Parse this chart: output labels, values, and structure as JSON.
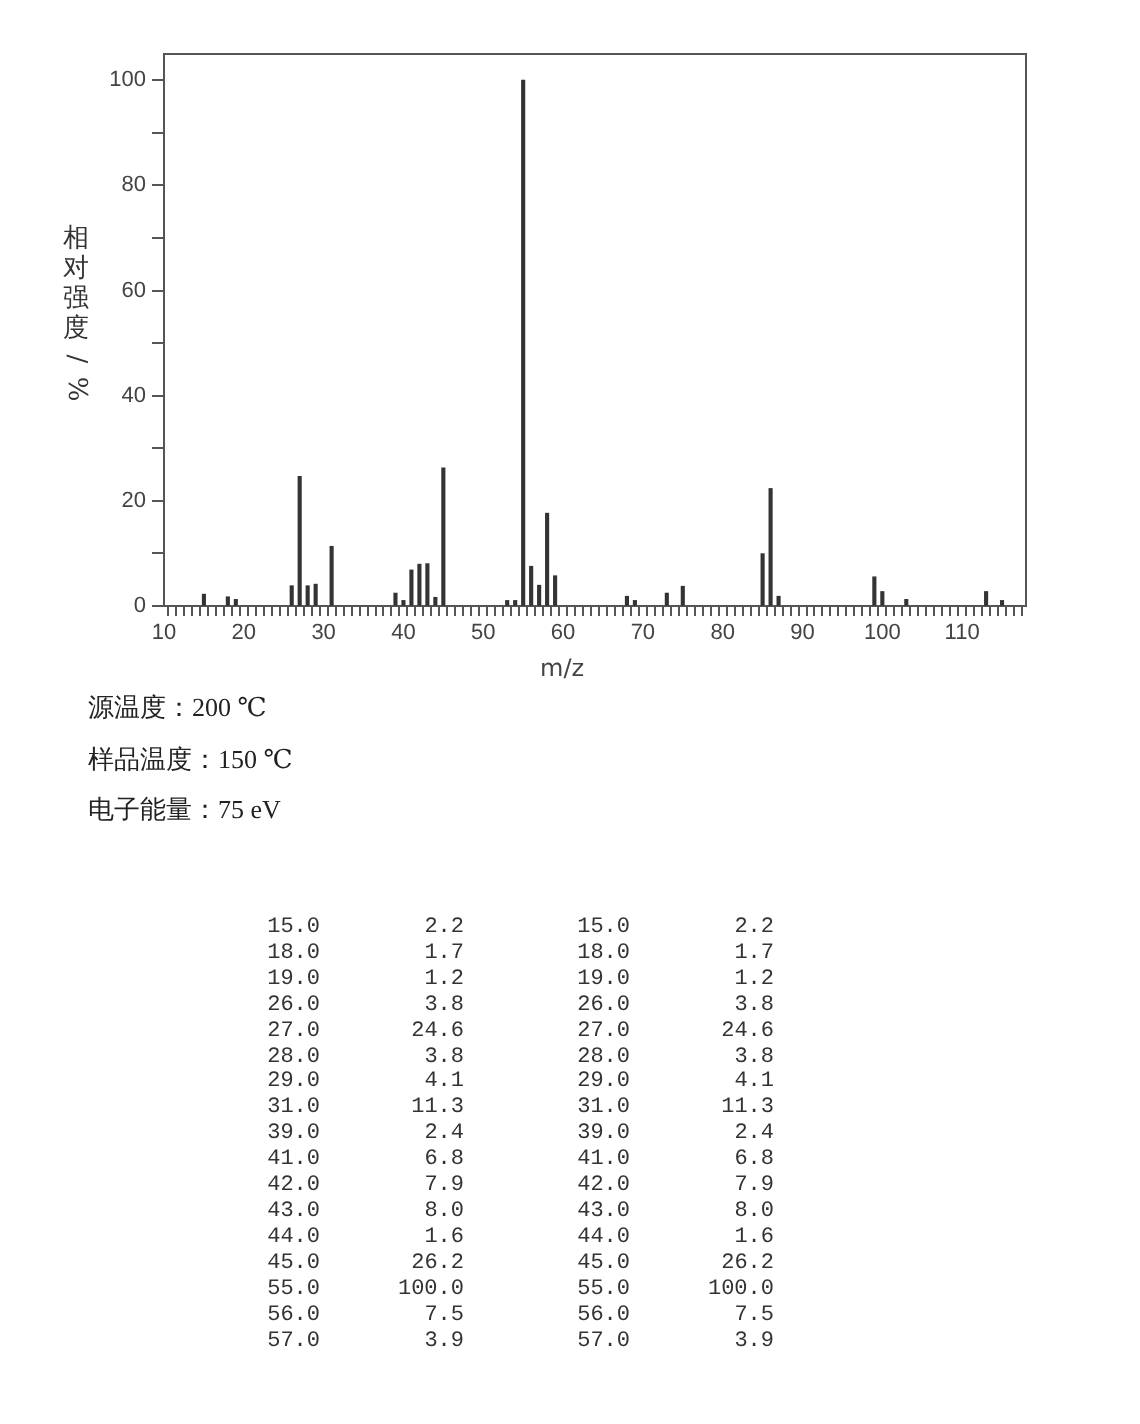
{
  "chart_data": {
    "type": "bar",
    "xlabel": "m/z",
    "ylabel": "相对强度/%",
    "x": [
      15,
      18,
      19,
      26,
      27,
      28,
      29,
      31,
      39,
      40,
      41,
      42,
      43,
      44,
      45,
      53,
      54,
      55,
      56,
      57,
      58,
      59,
      68,
      69,
      73,
      75,
      85,
      86,
      87,
      99,
      100,
      103,
      113,
      115
    ],
    "values": [
      2.2,
      1.7,
      1.2,
      3.8,
      24.6,
      3.8,
      4.1,
      11.3,
      2.4,
      1.0,
      6.8,
      7.9,
      8.0,
      1.6,
      26.2,
      1.0,
      1.0,
      100.0,
      7.5,
      3.9,
      17.6,
      5.7,
      1.8,
      1.0,
      2.4,
      3.7,
      9.9,
      22.3,
      1.8,
      5.5,
      2.7,
      1.2,
      2.7,
      1.0
    ],
    "color": "#333333",
    "xlim": [
      10,
      118
    ],
    "xticks": [
      10,
      {
        "value": 11,
        "label": null
      },
      {
        "value": 12,
        "label": null
      },
      {
        "value": 13,
        "label": null
      },
      {
        "value": 14,
        "label": null
      },
      {
        "value": 15,
        "label": null
      },
      {
        "value": 16,
        "label": null
      },
      {
        "value": 17,
        "label": null
      },
      {
        "value": 18,
        "label": null
      },
      {
        "value": 19,
        "label": null
      },
      20,
      {
        "value": 21,
        "label": null
      },
      {
        "value": 22,
        "label": null
      },
      {
        "value": 23,
        "label": null
      },
      {
        "value": 24,
        "label": null
      },
      {
        "value": 25,
        "label": null
      },
      {
        "value": 26,
        "label": null
      },
      {
        "value": 27,
        "label": null
      },
      {
        "value": 28,
        "label": null
      },
      {
        "value": 29,
        "label": null
      },
      30,
      {
        "value": 31,
        "label": null
      },
      {
        "value": 32,
        "label": null
      },
      {
        "value": 33,
        "label": null
      },
      {
        "value": 34,
        "label": null
      },
      {
        "value": 35,
        "label": null
      },
      {
        "value": 36,
        "label": null
      },
      {
        "value": 37,
        "label": null
      },
      {
        "value": 38,
        "label": null
      },
      {
        "value": 39,
        "label": null
      },
      40,
      {
        "value": 41,
        "label": null
      },
      {
        "value": 42,
        "label": null
      },
      {
        "value": 43,
        "label": null
      },
      {
        "value": 44,
        "label": null
      },
      {
        "value": 45,
        "label": null
      },
      {
        "value": 46,
        "label": null
      },
      {
        "value": 47,
        "label": null
      },
      {
        "value": 48,
        "label": null
      },
      {
        "value": 49,
        "label": null
      },
      50,
      {
        "value": 51,
        "label": null
      },
      {
        "value": 52,
        "label": null
      },
      {
        "value": 53,
        "label": null
      },
      {
        "value": 54,
        "label": null
      },
      {
        "value": 55,
        "label": null
      },
      {
        "value": 56,
        "label": null
      },
      {
        "value": 57,
        "label": null
      },
      {
        "value": 58,
        "label": null
      },
      {
        "value": 59,
        "label": null
      },
      60,
      {
        "value": 61,
        "label": null
      },
      {
        "value": 62,
        "label": null
      },
      {
        "value": 63,
        "label": null
      },
      {
        "value": 64,
        "label": null
      },
      {
        "value": 65,
        "label": null
      },
      {
        "value": 66,
        "label": null
      },
      {
        "value": 67,
        "label": null
      },
      {
        "value": 68,
        "label": null
      },
      {
        "value": 69,
        "label": null
      },
      70,
      {
        "value": 71,
        "label": null
      },
      {
        "value": 72,
        "label": null
      },
      {
        "value": 73,
        "label": null
      },
      {
        "value": 74,
        "label": null
      },
      {
        "value": 75,
        "label": null
      },
      {
        "value": 76,
        "label": null
      },
      {
        "value": 77,
        "label": null
      },
      {
        "value": 78,
        "label": null
      },
      {
        "value": 79,
        "label": null
      },
      80,
      {
        "value": 81,
        "label": null
      },
      {
        "value": 82,
        "label": null
      },
      {
        "value": 83,
        "label": null
      },
      {
        "value": 84,
        "label": null
      },
      {
        "value": 85,
        "label": null
      },
      {
        "value": 86,
        "label": null
      },
      {
        "value": 87,
        "label": null
      },
      {
        "value": 88,
        "label": null
      },
      {
        "value": 89,
        "label": null
      },
      90,
      {
        "value": 91,
        "label": null
      },
      {
        "value": 92,
        "label": null
      },
      {
        "value": 93,
        "label": null
      },
      {
        "value": 94,
        "label": null
      },
      {
        "value": 95,
        "label": null
      },
      {
        "value": 96,
        "label": null
      },
      {
        "value": 97,
        "label": null
      },
      {
        "value": 98,
        "label": null
      },
      {
        "value": 99,
        "label": null
      },
      100,
      {
        "value": 101,
        "label": null
      },
      {
        "value": 102,
        "label": null
      },
      {
        "value": 103,
        "label": null
      },
      {
        "value": 104,
        "label": null
      },
      {
        "value": 105,
        "label": null
      },
      {
        "value": 106,
        "label": null
      },
      {
        "value": 107,
        "label": null
      },
      {
        "value": 108,
        "label": null
      },
      {
        "value": 109,
        "label": null
      },
      110,
      {
        "value": 111,
        "label": null
      },
      {
        "value": 112,
        "label": null
      },
      {
        "value": 113,
        "label": null
      },
      {
        "value": 114,
        "label": null
      },
      {
        "value": 115,
        "label": null
      },
      {
        "value": 116,
        "label": null
      },
      {
        "value": 117,
        "label": null
      }
    ],
    "ylim": [
      0,
      105
    ],
    "yticks": [
      0,
      {
        "value": 10,
        "label": null
      },
      20,
      {
        "value": 30,
        "label": null
      },
      40,
      {
        "value": 50,
        "label": null
      },
      60,
      {
        "value": 70,
        "label": null
      },
      80,
      {
        "value": 90,
        "label": null
      },
      100
    ],
    "grid": false,
    "legend": false,
    "annotations": [
      "源温度：200 ℃",
      "样品温度：150 ℃",
      "电子能量：75 eV",
      "15.0",
      "2.2",
      "15.0",
      "2.2",
      "18.0",
      "1.7",
      "18.0",
      "1.7",
      "19.0",
      "1.2",
      "19.0",
      "1.2",
      "26.0",
      "3.8",
      "26.0",
      "3.8",
      "27.0",
      "24.6",
      "27.0",
      "24.6",
      "28.0",
      "3.8",
      "28.0",
      "3.8",
      "29.0",
      "4.1",
      "29.0",
      "4.1",
      "31.0",
      "11.3",
      "31.0",
      "11.3",
      "39.0",
      "2.4",
      "39.0",
      "2.4",
      "41.0",
      "6.8",
      "41.0",
      "6.8",
      "42.0",
      "7.9",
      "42.0",
      "7.9",
      "43.0",
      "8.0",
      "43.0",
      "8.0",
      "44.0",
      "1.6",
      "44.0",
      "1.6",
      "45.0",
      "26.2",
      "45.0",
      "26.2",
      "55.0",
      "100.0",
      "55.0",
      "100.0",
      "56.0",
      "7.5",
      "56.0",
      "7.5",
      "57.0",
      "3.9",
      "57.0",
      "3.9"
    ]
  }
}
